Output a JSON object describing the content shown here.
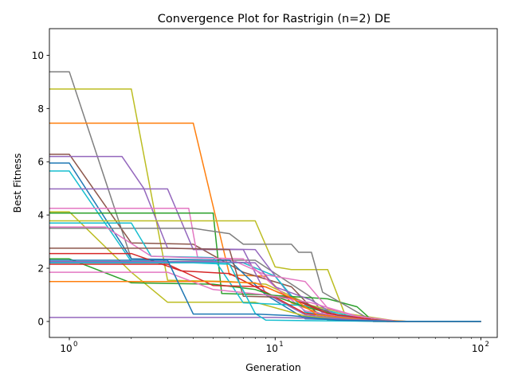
{
  "chart_data": {
    "type": "line",
    "title": "Convergence Plot for Rastrigin (n=2) DE",
    "xlabel": "Generation",
    "ylabel": "Best Fitness",
    "xscale": "log",
    "xlim": [
      0.8,
      120
    ],
    "ylim": [
      -0.6,
      11.0
    ],
    "xticks": [
      {
        "value": 1,
        "base": "10",
        "exp": "0"
      },
      {
        "value": 10,
        "base": "10",
        "exp": "1"
      },
      {
        "value": 100,
        "base": "10",
        "exp": "2"
      }
    ],
    "yticks": [
      0,
      2,
      4,
      6,
      8,
      10
    ],
    "grid": false,
    "legend": "none",
    "series": [
      {
        "color": "#7f7f7f",
        "points": [
          [
            0.8,
            9.38
          ],
          [
            1,
            9.38
          ],
          [
            2,
            2.35
          ],
          [
            4,
            2.3
          ],
          [
            8,
            2.3
          ],
          [
            15,
            0.9
          ],
          [
            18,
            0.05
          ],
          [
            30,
            0.0
          ],
          [
            100,
            0.0
          ]
        ]
      },
      {
        "color": "#bcbd22",
        "points": [
          [
            0.8,
            8.73
          ],
          [
            2,
            8.73
          ],
          [
            3,
            1.55
          ],
          [
            6,
            1.5
          ],
          [
            9,
            1.4
          ],
          [
            15,
            0.6
          ],
          [
            22,
            0.3
          ],
          [
            40,
            0.0
          ],
          [
            100,
            0.0
          ]
        ]
      },
      {
        "color": "#ff7f0e",
        "points": [
          [
            0.8,
            7.45
          ],
          [
            4,
            7.45
          ],
          [
            6,
            1.75
          ],
          [
            9,
            1.7
          ],
          [
            12,
            0.7
          ],
          [
            18,
            0.2
          ],
          [
            28,
            0.08
          ],
          [
            45,
            0.0
          ],
          [
            100,
            0.0
          ]
        ]
      },
      {
        "color": "#8c564b",
        "points": [
          [
            0.8,
            6.28
          ],
          [
            1,
            6.28
          ],
          [
            2,
            2.95
          ],
          [
            4,
            2.9
          ],
          [
            7,
            1.85
          ],
          [
            12,
            1.3
          ],
          [
            16,
            0.3
          ],
          [
            30,
            0.0
          ],
          [
            100,
            0.0
          ]
        ]
      },
      {
        "color": "#9467bd",
        "points": [
          [
            0.8,
            6.2
          ],
          [
            1.8,
            6.2
          ],
          [
            2.3,
            5.0
          ],
          [
            3,
            2.75
          ],
          [
            8,
            2.7
          ],
          [
            12,
            0.9
          ],
          [
            17,
            0.35
          ],
          [
            30,
            0.0
          ],
          [
            100,
            0.0
          ]
        ]
      },
      {
        "color": "#1f77b4",
        "points": [
          [
            0.8,
            5.95
          ],
          [
            1,
            5.95
          ],
          [
            2,
            2.35
          ],
          [
            6,
            2.3
          ],
          [
            9,
            1.0
          ],
          [
            14,
            0.1
          ],
          [
            25,
            0.05
          ],
          [
            40,
            0.0
          ],
          [
            100,
            0.0
          ]
        ]
      },
      {
        "color": "#17becf",
        "points": [
          [
            0.8,
            5.65
          ],
          [
            1,
            5.65
          ],
          [
            2,
            2.25
          ],
          [
            7,
            2.2
          ],
          [
            10,
            1.7
          ],
          [
            14,
            0.35
          ],
          [
            22,
            0.1
          ],
          [
            35,
            0.0
          ],
          [
            100,
            0.0
          ]
        ]
      },
      {
        "color": "#9467bd",
        "points": [
          [
            0.8,
            4.98
          ],
          [
            3,
            4.98
          ],
          [
            4,
            2.7
          ],
          [
            7,
            2.7
          ],
          [
            9,
            1.05
          ],
          [
            14,
            0.25
          ],
          [
            25,
            0.05
          ],
          [
            40,
            0.0
          ],
          [
            100,
            0.0
          ]
        ]
      },
      {
        "color": "#e377c2",
        "points": [
          [
            0.8,
            4.25
          ],
          [
            3.8,
            4.25
          ],
          [
            4.2,
            2.4
          ],
          [
            7,
            2.35
          ],
          [
            10,
            1.3
          ],
          [
            14,
            0.4
          ],
          [
            30,
            0.0
          ],
          [
            100,
            0.0
          ]
        ]
      },
      {
        "color": "#bcbd22",
        "points": [
          [
            0.8,
            4.12
          ],
          [
            1,
            4.12
          ],
          [
            2,
            1.85
          ],
          [
            3,
            0.72
          ],
          [
            8,
            0.72
          ],
          [
            14,
            0.2
          ],
          [
            20,
            0.1
          ],
          [
            35,
            0.0
          ],
          [
            100,
            0.0
          ]
        ]
      },
      {
        "color": "#2ca02c",
        "points": [
          [
            0.8,
            4.07
          ],
          [
            5,
            4.07
          ],
          [
            5.5,
            1.05
          ],
          [
            9,
            1.0
          ],
          [
            18,
            0.85
          ],
          [
            25,
            0.55
          ],
          [
            30,
            0.0
          ],
          [
            100,
            0.0
          ]
        ]
      },
      {
        "color": "#bcbd22",
        "points": [
          [
            0.8,
            3.78
          ],
          [
            8,
            3.78
          ],
          [
            10,
            2.05
          ],
          [
            12,
            1.95
          ],
          [
            18,
            1.95
          ],
          [
            22,
            0.2
          ],
          [
            30,
            0.0
          ],
          [
            100,
            0.0
          ]
        ]
      },
      {
        "color": "#7f7f7f",
        "points": [
          [
            0.8,
            3.5
          ],
          [
            4,
            3.5
          ],
          [
            6,
            3.3
          ],
          [
            7,
            2.9
          ],
          [
            12,
            2.9
          ],
          [
            13,
            2.6
          ],
          [
            15,
            2.6
          ],
          [
            17,
            1.1
          ],
          [
            30,
            0.0
          ],
          [
            100,
            0.0
          ]
        ]
      },
      {
        "color": "#17becf",
        "points": [
          [
            0.8,
            3.7
          ],
          [
            2,
            3.7
          ],
          [
            2.5,
            2.45
          ],
          [
            5,
            2.4
          ],
          [
            7,
            0.7
          ],
          [
            14,
            0.6
          ],
          [
            30,
            0.0
          ],
          [
            100,
            0.0
          ]
        ]
      },
      {
        "color": "#e377c2",
        "points": [
          [
            0.8,
            3.55
          ],
          [
            1.5,
            3.55
          ],
          [
            2.5,
            2.45
          ],
          [
            6,
            2.35
          ],
          [
            9,
            1.75
          ],
          [
            14,
            1.5
          ],
          [
            18,
            0.5
          ],
          [
            30,
            0.0
          ],
          [
            100,
            0.0
          ]
        ]
      },
      {
        "color": "#8c564b",
        "points": [
          [
            0.8,
            2.75
          ],
          [
            3,
            2.75
          ],
          [
            6,
            2.7
          ],
          [
            7,
            0.95
          ],
          [
            12,
            0.9
          ],
          [
            16,
            0.5
          ],
          [
            22,
            0.15
          ],
          [
            40,
            0.0
          ],
          [
            100,
            0.0
          ]
        ]
      },
      {
        "color": "#d62728",
        "points": [
          [
            0.8,
            2.55
          ],
          [
            2,
            2.55
          ],
          [
            3.5,
            1.9
          ],
          [
            6,
            1.8
          ],
          [
            9,
            1.1
          ],
          [
            14,
            0.3
          ],
          [
            25,
            0.1
          ],
          [
            40,
            0.0
          ],
          [
            100,
            0.0
          ]
        ]
      },
      {
        "color": "#2ca02c",
        "points": [
          [
            0.8,
            2.35
          ],
          [
            1,
            2.35
          ],
          [
            2,
            1.45
          ],
          [
            5,
            1.4
          ],
          [
            8,
            1.2
          ],
          [
            14,
            0.55
          ],
          [
            22,
            0.15
          ],
          [
            40,
            0.0
          ],
          [
            100,
            0.0
          ]
        ]
      },
      {
        "color": "#9467bd",
        "points": [
          [
            0.8,
            2.25
          ],
          [
            5,
            2.25
          ],
          [
            8,
            2.2
          ],
          [
            10,
            1.3
          ],
          [
            15,
            0.8
          ],
          [
            20,
            0.2
          ],
          [
            35,
            0.0
          ],
          [
            100,
            0.0
          ]
        ]
      },
      {
        "color": "#d62728",
        "points": [
          [
            0.8,
            2.15
          ],
          [
            3,
            2.15
          ],
          [
            5,
            1.35
          ],
          [
            9,
            1.3
          ],
          [
            13,
            0.75
          ],
          [
            18,
            0.3
          ],
          [
            35,
            0.0
          ],
          [
            100,
            0.0
          ]
        ]
      },
      {
        "color": "#e377c2",
        "points": [
          [
            0.8,
            1.85
          ],
          [
            3,
            1.85
          ],
          [
            5,
            1.2
          ],
          [
            9,
            1.0
          ],
          [
            15,
            0.7
          ],
          [
            25,
            0.2
          ],
          [
            40,
            0.0
          ],
          [
            100,
            0.0
          ]
        ]
      },
      {
        "color": "#ff7f0e",
        "points": [
          [
            0.8,
            1.5
          ],
          [
            5,
            1.5
          ],
          [
            8,
            1.45
          ],
          [
            12,
            0.9
          ],
          [
            16,
            0.25
          ],
          [
            28,
            0.05
          ],
          [
            45,
            0.0
          ],
          [
            100,
            0.0
          ]
        ]
      },
      {
        "color": "#9467bd",
        "points": [
          [
            0.8,
            0.15
          ],
          [
            10,
            0.15
          ],
          [
            20,
            0.1
          ],
          [
            40,
            0.0
          ],
          [
            100,
            0.0
          ]
        ]
      },
      {
        "color": "#17becf",
        "points": [
          [
            0.8,
            2.2
          ],
          [
            4,
            2.2
          ],
          [
            6,
            2.15
          ],
          [
            8,
            0.3
          ],
          [
            9,
            0.05
          ],
          [
            20,
            0.02
          ],
          [
            40,
            0.0
          ],
          [
            100,
            0.0
          ]
        ]
      },
      {
        "color": "#1f77b4",
        "points": [
          [
            0.8,
            2.3
          ],
          [
            3,
            2.3
          ],
          [
            4,
            0.28
          ],
          [
            8,
            0.28
          ],
          [
            12,
            0.22
          ],
          [
            20,
            0.05
          ],
          [
            40,
            0.0
          ],
          [
            100,
            0.0
          ]
        ]
      }
    ]
  }
}
